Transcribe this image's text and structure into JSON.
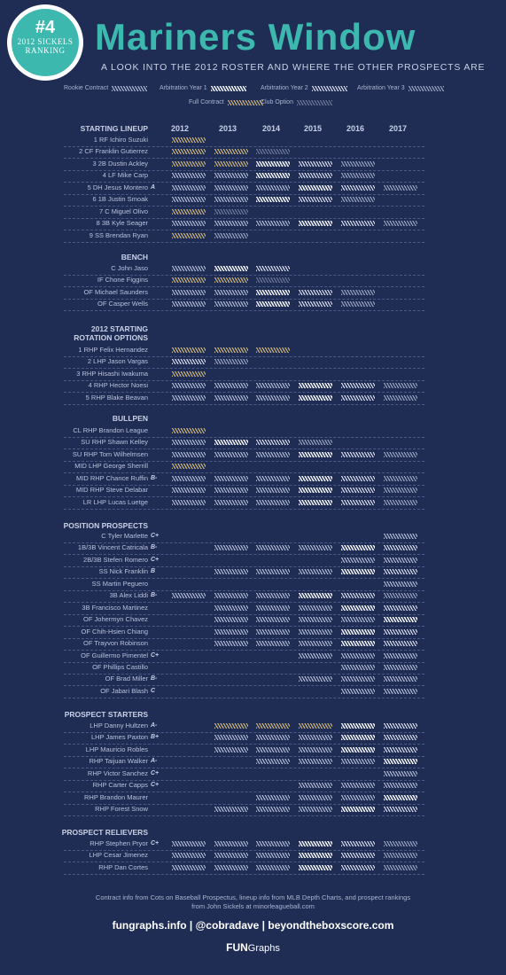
{
  "badge": {
    "number": "#4",
    "line1": "2012 SICKELS",
    "line2": "RANKING"
  },
  "title": "Mariners Window",
  "subtitle": "A LOOK INTO THE 2012 ROSTER AND WHERE THE OTHER PROSPECTS ARE",
  "legend": [
    {
      "key": "rookie",
      "label": "Rookie Contract"
    },
    {
      "key": "arb1",
      "label": "Arbitration Year 1"
    },
    {
      "key": "arb2",
      "label": "Arbitration Year 2"
    },
    {
      "key": "arb3",
      "label": "Arbitration Year 3"
    },
    {
      "key": "full",
      "label": "Full Contract"
    },
    {
      "key": "option",
      "label": "Club Option"
    }
  ],
  "colors": {
    "background": "#1f2d55",
    "title": "#3cb8ae",
    "rookie": "#aeb8d2",
    "arb1": "#f1f3f8",
    "arb2": "#d7dcea",
    "arb3": "#98a2c0",
    "full": "#c9b27c",
    "option": "#6c7698"
  },
  "years": [
    "2012",
    "2013",
    "2014",
    "2015",
    "2016",
    "2017"
  ],
  "sections": [
    {
      "title": "STARTING LINEUP",
      "rows": [
        {
          "name": "1 RF Ichiro Suzuki",
          "rank": "",
          "cells": [
            "full",
            "",
            "",
            "",
            "",
            ""
          ]
        },
        {
          "name": "2 CF Franklin Gutierrez",
          "rank": "",
          "cells": [
            "full",
            "full",
            "option",
            "",
            "",
            ""
          ]
        },
        {
          "name": "3 2B Dustin Ackley",
          "rank": "",
          "cells": [
            "full",
            "full",
            "arb1",
            "arb2",
            "arb3",
            ""
          ]
        },
        {
          "name": "4 LF Mike Carp",
          "rank": "",
          "cells": [
            "rookie",
            "rookie",
            "arb1",
            "arb2",
            "arb3",
            ""
          ]
        },
        {
          "name": "5 DH Jesus Montero",
          "rank": "A",
          "cells": [
            "rookie",
            "rookie",
            "rookie",
            "arb1",
            "arb2",
            "arb3"
          ]
        },
        {
          "name": "6 1B Justin Smoak",
          "rank": "",
          "cells": [
            "rookie",
            "rookie",
            "arb1",
            "arb2",
            "arb3",
            ""
          ]
        },
        {
          "name": "7 C Miguel Olivo",
          "rank": "",
          "cells": [
            "full",
            "option",
            "",
            "",
            "",
            ""
          ]
        },
        {
          "name": "8 3B Kyle Seager",
          "rank": "",
          "cells": [
            "rookie",
            "rookie",
            "rookie",
            "arb1",
            "arb2",
            "arb3"
          ]
        },
        {
          "name": "9 SS Brendan Ryan",
          "rank": "",
          "cells": [
            "full",
            "arb3",
            "",
            "",
            "",
            ""
          ]
        }
      ]
    },
    {
      "title": "BENCH",
      "rows": [
        {
          "name": "C John Jaso",
          "rank": "",
          "cells": [
            "rookie",
            "arb1",
            "arb2",
            "",
            "",
            ""
          ]
        },
        {
          "name": "IF Chone Figgins",
          "rank": "",
          "cells": [
            "full",
            "full",
            "option",
            "",
            "",
            ""
          ]
        },
        {
          "name": "OF Michael Saunders",
          "rank": "",
          "cells": [
            "rookie",
            "rookie",
            "arb1",
            "arb2",
            "arb3",
            ""
          ]
        },
        {
          "name": "OF Casper Wells",
          "rank": "",
          "cells": [
            "rookie",
            "rookie",
            "arb1",
            "arb2",
            "arb3",
            ""
          ]
        }
      ]
    },
    {
      "title": "2012 STARTING",
      "title2": "ROTATION OPTIONS",
      "rows": [
        {
          "name": "1 RHP Felix Hernandez",
          "rank": "",
          "cells": [
            "full",
            "full",
            "full",
            "",
            "",
            ""
          ]
        },
        {
          "name": "2 LHP Jason Vargas",
          "rank": "",
          "cells": [
            "arb2",
            "arb3",
            "",
            "",
            "",
            ""
          ]
        },
        {
          "name": "3 RHP Hisashi Iwakuma",
          "rank": "",
          "cells": [
            "full",
            "",
            "",
            "",
            "",
            ""
          ]
        },
        {
          "name": "4 RHP Hector Noesi",
          "rank": "",
          "cells": [
            "rookie",
            "rookie",
            "rookie",
            "arb1",
            "arb2",
            "arb3"
          ]
        },
        {
          "name": "5  RHP Blake Beavan",
          "rank": "",
          "cells": [
            "rookie",
            "rookie",
            "rookie",
            "arb1",
            "arb2",
            "arb3"
          ]
        }
      ]
    },
    {
      "title": "BULLPEN",
      "rows": [
        {
          "name": "CL RHP Brandon League",
          "rank": "",
          "cells": [
            "full",
            "",
            "",
            "",
            "",
            ""
          ]
        },
        {
          "name": "SU RHP Shawn Kelley",
          "rank": "",
          "cells": [
            "rookie",
            "arb1",
            "arb2",
            "arb3",
            "",
            ""
          ]
        },
        {
          "name": "SU RHP Tom Wilhelmsen",
          "rank": "",
          "cells": [
            "rookie",
            "rookie",
            "rookie",
            "arb1",
            "arb2",
            "arb3"
          ]
        },
        {
          "name": "MID LHP George Sherrill",
          "rank": "",
          "cells": [
            "full",
            "",
            "",
            "",
            "",
            ""
          ]
        },
        {
          "name": "MID RHP Chance Ruffin",
          "rank": "B-",
          "cells": [
            "rookie",
            "rookie",
            "rookie",
            "arb1",
            "arb2",
            "arb3"
          ]
        },
        {
          "name": "MID RHP Steve Delabar",
          "rank": "",
          "cells": [
            "rookie",
            "rookie",
            "rookie",
            "arb1",
            "arb2",
            "arb3"
          ]
        },
        {
          "name": "LR LHP Lucas Luetge",
          "rank": "",
          "cells": [
            "rookie",
            "rookie",
            "rookie",
            "arb1",
            "arb2",
            "arb3"
          ]
        }
      ]
    },
    {
      "title": "POSITION PROSPECTS",
      "rows": [
        {
          "name": "C Tyler Marlette",
          "rank": "C+",
          "cells": [
            "",
            "",
            "",
            "",
            "",
            "rookie"
          ]
        },
        {
          "name": "1B/3B Vincent Catricala",
          "rank": "B-",
          "cells": [
            "",
            "rookie",
            "rookie",
            "rookie",
            "arb1",
            "arb2"
          ]
        },
        {
          "name": "2B/3B Stefen Romero",
          "rank": "C+",
          "cells": [
            "",
            "",
            "",
            "",
            "rookie",
            "rookie"
          ]
        },
        {
          "name": "SS Nick Franklin",
          "rank": "B",
          "cells": [
            "",
            "rookie",
            "rookie",
            "rookie",
            "arb1",
            "arb2"
          ]
        },
        {
          "name": "SS Martin Peguero",
          "rank": "",
          "cells": [
            "",
            "",
            "",
            "",
            "",
            "rookie"
          ]
        },
        {
          "name": "3B Alex Liddi",
          "rank": "B-",
          "cells": [
            "rookie",
            "rookie",
            "rookie",
            "arb1",
            "arb2",
            "arb3"
          ]
        },
        {
          "name": "3B Francisco Martinez",
          "rank": "",
          "cells": [
            "",
            "rookie",
            "rookie",
            "rookie",
            "arb1",
            "arb2"
          ]
        },
        {
          "name": "OF Johermyn Chavez",
          "rank": "",
          "cells": [
            "",
            "rookie",
            "rookie",
            "rookie",
            "rookie",
            "arb1"
          ]
        },
        {
          "name": "OF Chih-Hsien Chiang",
          "rank": "",
          "cells": [
            "",
            "rookie",
            "rookie",
            "rookie",
            "arb1",
            "arb2"
          ]
        },
        {
          "name": "OF Trayvon Robinson",
          "rank": "",
          "cells": [
            "",
            "rookie",
            "rookie",
            "rookie",
            "arb1",
            "arb2"
          ]
        },
        {
          "name": "OF Guillermo Pimentel",
          "rank": "C+",
          "cells": [
            "",
            "",
            "",
            "rookie",
            "rookie",
            "rookie"
          ]
        },
        {
          "name": "OF Phillips Castillo",
          "rank": "",
          "cells": [
            "",
            "",
            "",
            "",
            "rookie",
            "rookie"
          ]
        },
        {
          "name": "OF Brad Miller",
          "rank": "B-",
          "cells": [
            "",
            "",
            "",
            "rookie",
            "rookie",
            "rookie"
          ]
        },
        {
          "name": "OF Jabari Blash",
          "rank": "C",
          "cells": [
            "",
            "",
            "",
            "",
            "rookie",
            "rookie"
          ]
        }
      ]
    },
    {
      "title": "PROSPECT STARTERS",
      "rows": [
        {
          "name": "LHP Danny Hultzen",
          "rank": "A-",
          "cells": [
            "",
            "full",
            "full",
            "full",
            "arb1",
            "arb2"
          ]
        },
        {
          "name": "LHP James Paxton",
          "rank": "B+",
          "cells": [
            "",
            "rookie",
            "rookie",
            "rookie",
            "arb1",
            "arb2"
          ]
        },
        {
          "name": "LHP Mauricio Robles",
          "rank": "",
          "cells": [
            "",
            "rookie",
            "rookie",
            "rookie",
            "arb1",
            "arb2"
          ]
        },
        {
          "name": "RHP Taijuan Walker",
          "rank": "A-",
          "cells": [
            "",
            "",
            "rookie",
            "rookie",
            "rookie",
            "arb1"
          ]
        },
        {
          "name": "RHP Victor Sanchez",
          "rank": "C+",
          "cells": [
            "",
            "",
            "",
            "",
            "",
            "rookie"
          ]
        },
        {
          "name": "RHP Carter Capps",
          "rank": "C+",
          "cells": [
            "",
            "",
            "",
            "rookie",
            "rookie",
            "rookie"
          ]
        },
        {
          "name": "RHP Brandon Maurer",
          "rank": "",
          "cells": [
            "",
            "",
            "rookie",
            "rookie",
            "rookie",
            "arb1"
          ]
        },
        {
          "name": "RHP Forest Snow",
          "rank": "",
          "cells": [
            "",
            "rookie",
            "rookie",
            "rookie",
            "arb1",
            "arb2"
          ]
        }
      ]
    },
    {
      "title": "PROSPECT RELIEVERS",
      "rows": [
        {
          "name": "RHP Stephen Pryor",
          "rank": "C+",
          "cells": [
            "rookie",
            "rookie",
            "rookie",
            "arb1",
            "arb2",
            "arb3"
          ]
        },
        {
          "name": "LHP Cesar Jimenez",
          "rank": "",
          "cells": [
            "rookie",
            "rookie",
            "rookie",
            "arb1",
            "arb2",
            "arb3"
          ]
        },
        {
          "name": "RHP Dan Cortes",
          "rank": "",
          "cells": [
            "rookie",
            "rookie",
            "rookie",
            "arb1",
            "arb2",
            "arb3"
          ]
        }
      ]
    }
  ],
  "footer": {
    "note1": "Contract info from Cots on Baseball Prospectus, lineup info from MLB Depth Charts, and prospect rankings",
    "note2": "from John Sickels at minorleagueball.com",
    "links": "fungraphs.info | @cobradave | beyondtheboxscore.com",
    "brand_bold": "FUN",
    "brand_rest": "Graphs"
  }
}
